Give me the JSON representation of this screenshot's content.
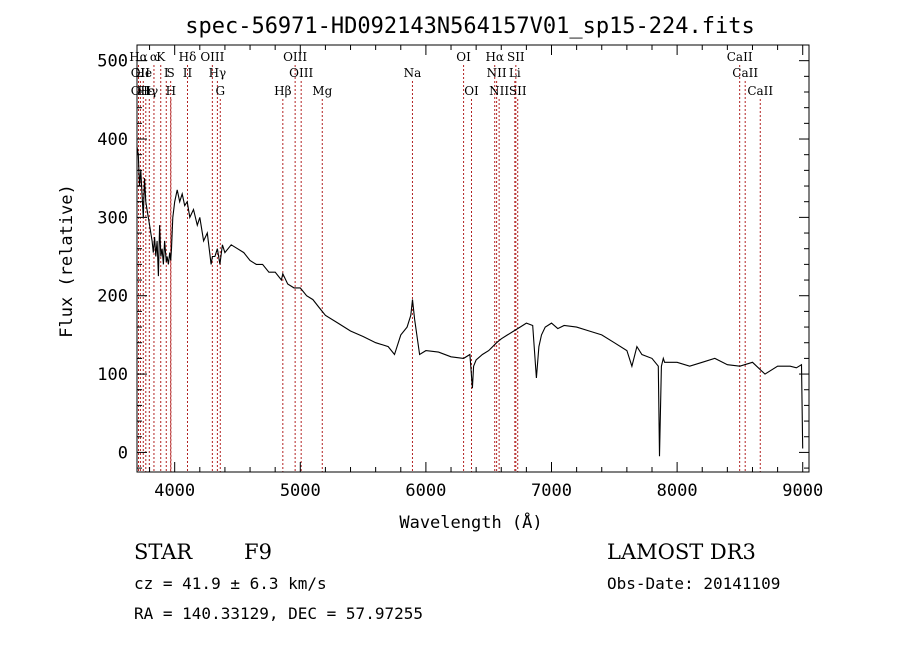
{
  "chart_data": {
    "type": "line",
    "title": "spec-56971-HD092143N564157V01_sp15-224.fits",
    "xlabel": "Wavelength (Å)",
    "ylabel": "Flux (relative)",
    "xlim": [
      3700,
      9050
    ],
    "ylim": [
      -25,
      520
    ],
    "xticks": [
      4000,
      5000,
      6000,
      7000,
      8000,
      9000
    ],
    "xtick_labels": [
      "4000",
      "5000",
      "6000",
      "7000",
      "8000",
      "9000"
    ],
    "yticks": [
      0,
      100,
      200,
      300,
      400,
      500
    ],
    "ytick_labels": [
      "0",
      "100",
      "200",
      "300",
      "400",
      "500"
    ],
    "grid": false,
    "line_color": "#000000",
    "marker_color": "#b22222",
    "spectrum": {
      "x": [
        3700,
        3710,
        3720,
        3730,
        3740,
        3750,
        3760,
        3770,
        3780,
        3790,
        3800,
        3810,
        3820,
        3830,
        3840,
        3850,
        3860,
        3870,
        3880,
        3890,
        3900,
        3910,
        3920,
        3933,
        3940,
        3950,
        3960,
        3968,
        3975,
        3985,
        4000,
        4020,
        4040,
        4060,
        4080,
        4100,
        4120,
        4150,
        4180,
        4200,
        4230,
        4260,
        4290,
        4300,
        4320,
        4340,
        4360,
        4380,
        4400,
        4450,
        4500,
        4550,
        4600,
        4650,
        4700,
        4750,
        4800,
        4850,
        4861,
        4900,
        4950,
        5000,
        5050,
        5100,
        5150,
        5200,
        5300,
        5400,
        5500,
        5600,
        5700,
        5750,
        5800,
        5850,
        5880,
        5893,
        5910,
        5950,
        6000,
        6100,
        6200,
        6300,
        6350,
        6370,
        6380,
        6400,
        6450,
        6500,
        6563,
        6600,
        6650,
        6700,
        6750,
        6800,
        6850,
        6880,
        6900,
        6920,
        6950,
        7000,
        7050,
        7100,
        7200,
        7300,
        7400,
        7500,
        7600,
        7640,
        7680,
        7720,
        7800,
        7850,
        7860,
        7875,
        7890,
        7900,
        8000,
        8100,
        8200,
        8300,
        8400,
        8500,
        8600,
        8700,
        8800,
        8900,
        8950,
        8990,
        9000
      ],
      "y": [
        390,
        380,
        340,
        360,
        330,
        300,
        350,
        320,
        310,
        300,
        290,
        280,
        270,
        255,
        275,
        250,
        270,
        225,
        290,
        250,
        260,
        240,
        270,
        243,
        250,
        240,
        255,
        245,
        260,
        300,
        320,
        335,
        320,
        330,
        315,
        320,
        300,
        310,
        290,
        300,
        270,
        280,
        240,
        250,
        250,
        260,
        240,
        265,
        255,
        265,
        260,
        255,
        245,
        240,
        240,
        230,
        230,
        220,
        228,
        215,
        210,
        210,
        200,
        195,
        185,
        175,
        165,
        155,
        148,
        140,
        135,
        125,
        150,
        160,
        175,
        195,
        170,
        125,
        130,
        128,
        122,
        120,
        125,
        82,
        110,
        118,
        125,
        130,
        140,
        145,
        150,
        155,
        160,
        165,
        162,
        95,
        135,
        150,
        160,
        165,
        158,
        162,
        160,
        155,
        150,
        140,
        130,
        110,
        135,
        125,
        120,
        110,
        -5,
        110,
        120,
        115,
        115,
        110,
        115,
        120,
        112,
        110,
        115,
        100,
        110,
        110,
        108,
        112,
        5
      ]
    },
    "lines": [
      {
        "label": "Hα",
        "wl": 3712,
        "row": 1
      },
      {
        "label": "OII",
        "wl": 3727,
        "row": 2
      },
      {
        "label": "OII",
        "wl": 3727,
        "row": 3
      },
      {
        "label": "He",
        "wl": 3750,
        "row": 2
      },
      {
        "label": "Hε",
        "wl": 3770,
        "row": 3
      },
      {
        "label": "Hγ",
        "wl": 3798,
        "row": 3
      },
      {
        "label": "α",
        "wl": 3835,
        "row": 1
      },
      {
        "label": "K",
        "wl": 3889,
        "row": 1
      },
      {
        "label": "I",
        "wl": 3933,
        "row": 2
      },
      {
        "label": "S",
        "wl": 3968,
        "row": 2
      },
      {
        "label": "H",
        "wl": 3970,
        "row": 3
      },
      {
        "label": "Hδ",
        "wl": 4102,
        "row": 1
      },
      {
        "label": "II",
        "wl": 4102,
        "row": 2
      },
      {
        "label": "OIII",
        "wl": 4300,
        "row": 1
      },
      {
        "label": "Hγ",
        "wl": 4340,
        "row": 2
      },
      {
        "label": "G",
        "wl": 4363,
        "row": 3
      },
      {
        "label": "Hβ",
        "wl": 4861,
        "row": 3
      },
      {
        "label": "OIII",
        "wl": 4959,
        "row": 1
      },
      {
        "label": "OIII",
        "wl": 5007,
        "row": 2
      },
      {
        "label": "Mg",
        "wl": 5175,
        "row": 3
      },
      {
        "label": "Na",
        "wl": 5893,
        "row": 2
      },
      {
        "label": "OI",
        "wl": 6300,
        "row": 1
      },
      {
        "label": "OI",
        "wl": 6363,
        "row": 3
      },
      {
        "label": "Hα",
        "wl": 6548,
        "row": 1
      },
      {
        "label": "NII",
        "wl": 6563,
        "row": 2
      },
      {
        "label": "NII",
        "wl": 6583,
        "row": 3
      },
      {
        "label": "SII",
        "wl": 6716,
        "row": 1
      },
      {
        "label": "Li",
        "wl": 6708,
        "row": 2
      },
      {
        "label": "SII",
        "wl": 6731,
        "row": 3
      },
      {
        "label": "CaII",
        "wl": 8498,
        "row": 1
      },
      {
        "label": "CaII",
        "wl": 8542,
        "row": 2
      },
      {
        "label": "CaII",
        "wl": 8662,
        "row": 3
      }
    ]
  },
  "info": {
    "star_label": "STAR",
    "spectral_type": "F9",
    "survey": "LAMOST DR3",
    "cz": "cz = 41.9 ± 6.3 km/s",
    "obs_date": "Obs-Date: 20141109",
    "coords": "RA = 140.33129, DEC =  57.97255"
  }
}
